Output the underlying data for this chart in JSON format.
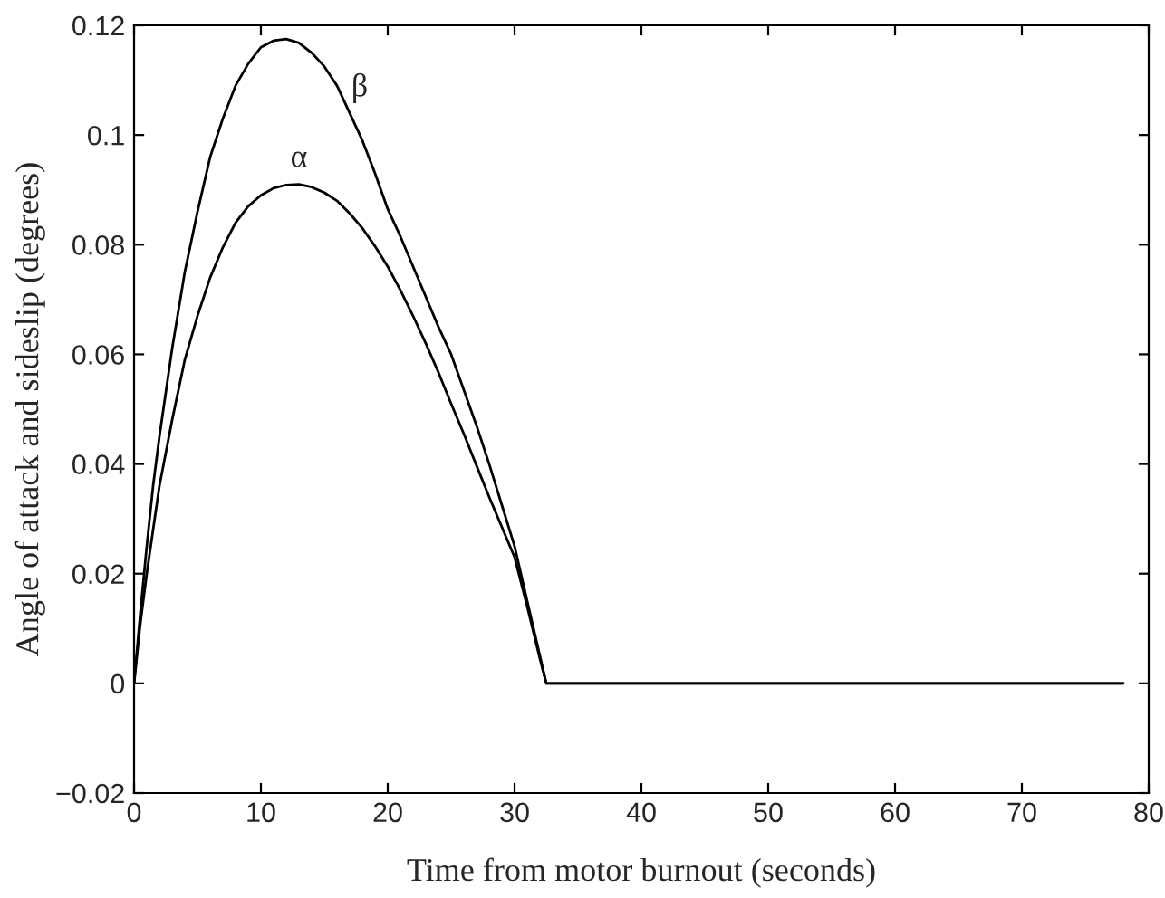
{
  "chart_data": {
    "type": "line",
    "xlabel": "Time from motor burnout (seconds)",
    "ylabel": "Angle of attack and sideslip (degrees)",
    "series": [
      {
        "name": "β",
        "color": "#000000",
        "x": [
          0,
          0.5,
          1,
          1.5,
          2,
          3,
          4,
          5,
          6,
          7,
          8,
          9,
          10,
          11,
          12,
          13,
          14,
          15,
          16,
          17,
          18,
          19,
          20,
          21,
          22,
          23,
          24,
          25,
          26,
          27,
          28,
          29,
          30,
          31,
          32,
          32.5,
          78
        ],
        "values": [
          0,
          0.013,
          0.025,
          0.036,
          0.045,
          0.061,
          0.075,
          0.086,
          0.096,
          0.103,
          0.109,
          0.113,
          0.116,
          0.1172,
          0.1175,
          0.1168,
          0.115,
          0.1125,
          0.109,
          0.104,
          0.099,
          0.093,
          0.0865,
          0.0815,
          0.076,
          0.0705,
          0.065,
          0.06,
          0.0535,
          0.047,
          0.04,
          0.0325,
          0.025,
          0.015,
          0.005,
          0,
          0
        ]
      },
      {
        "name": "α",
        "color": "#000000",
        "x": [
          0,
          0.5,
          1,
          1.5,
          2,
          3,
          4,
          5,
          6,
          7,
          8,
          9,
          10,
          11,
          12,
          13,
          14,
          15,
          16,
          17,
          18,
          19,
          20,
          21,
          22,
          23,
          24,
          25,
          26,
          27,
          28,
          29,
          30,
          31,
          32,
          32.5,
          78
        ],
        "values": [
          0,
          0.011,
          0.02,
          0.028,
          0.036,
          0.048,
          0.059,
          0.067,
          0.074,
          0.0795,
          0.084,
          0.087,
          0.089,
          0.0903,
          0.0909,
          0.091,
          0.0905,
          0.0895,
          0.088,
          0.0857,
          0.083,
          0.0797,
          0.076,
          0.0717,
          0.067,
          0.062,
          0.0567,
          0.051,
          0.0455,
          0.0397,
          0.034,
          0.0285,
          0.023,
          0.014,
          0.0045,
          0,
          0
        ]
      }
    ],
    "xlim": [
      0,
      80
    ],
    "xticks": [
      0,
      10,
      20,
      30,
      40,
      50,
      60,
      70,
      80
    ],
    "ylim": [
      -0.02,
      0.12
    ],
    "yticks": [
      {
        "value": -0.02,
        "label": "−0.02"
      },
      0,
      0.02,
      0.04,
      0.06,
      0.08,
      0.1,
      0.12
    ],
    "grid": false,
    "marker": "none",
    "line_style": "solid"
  }
}
